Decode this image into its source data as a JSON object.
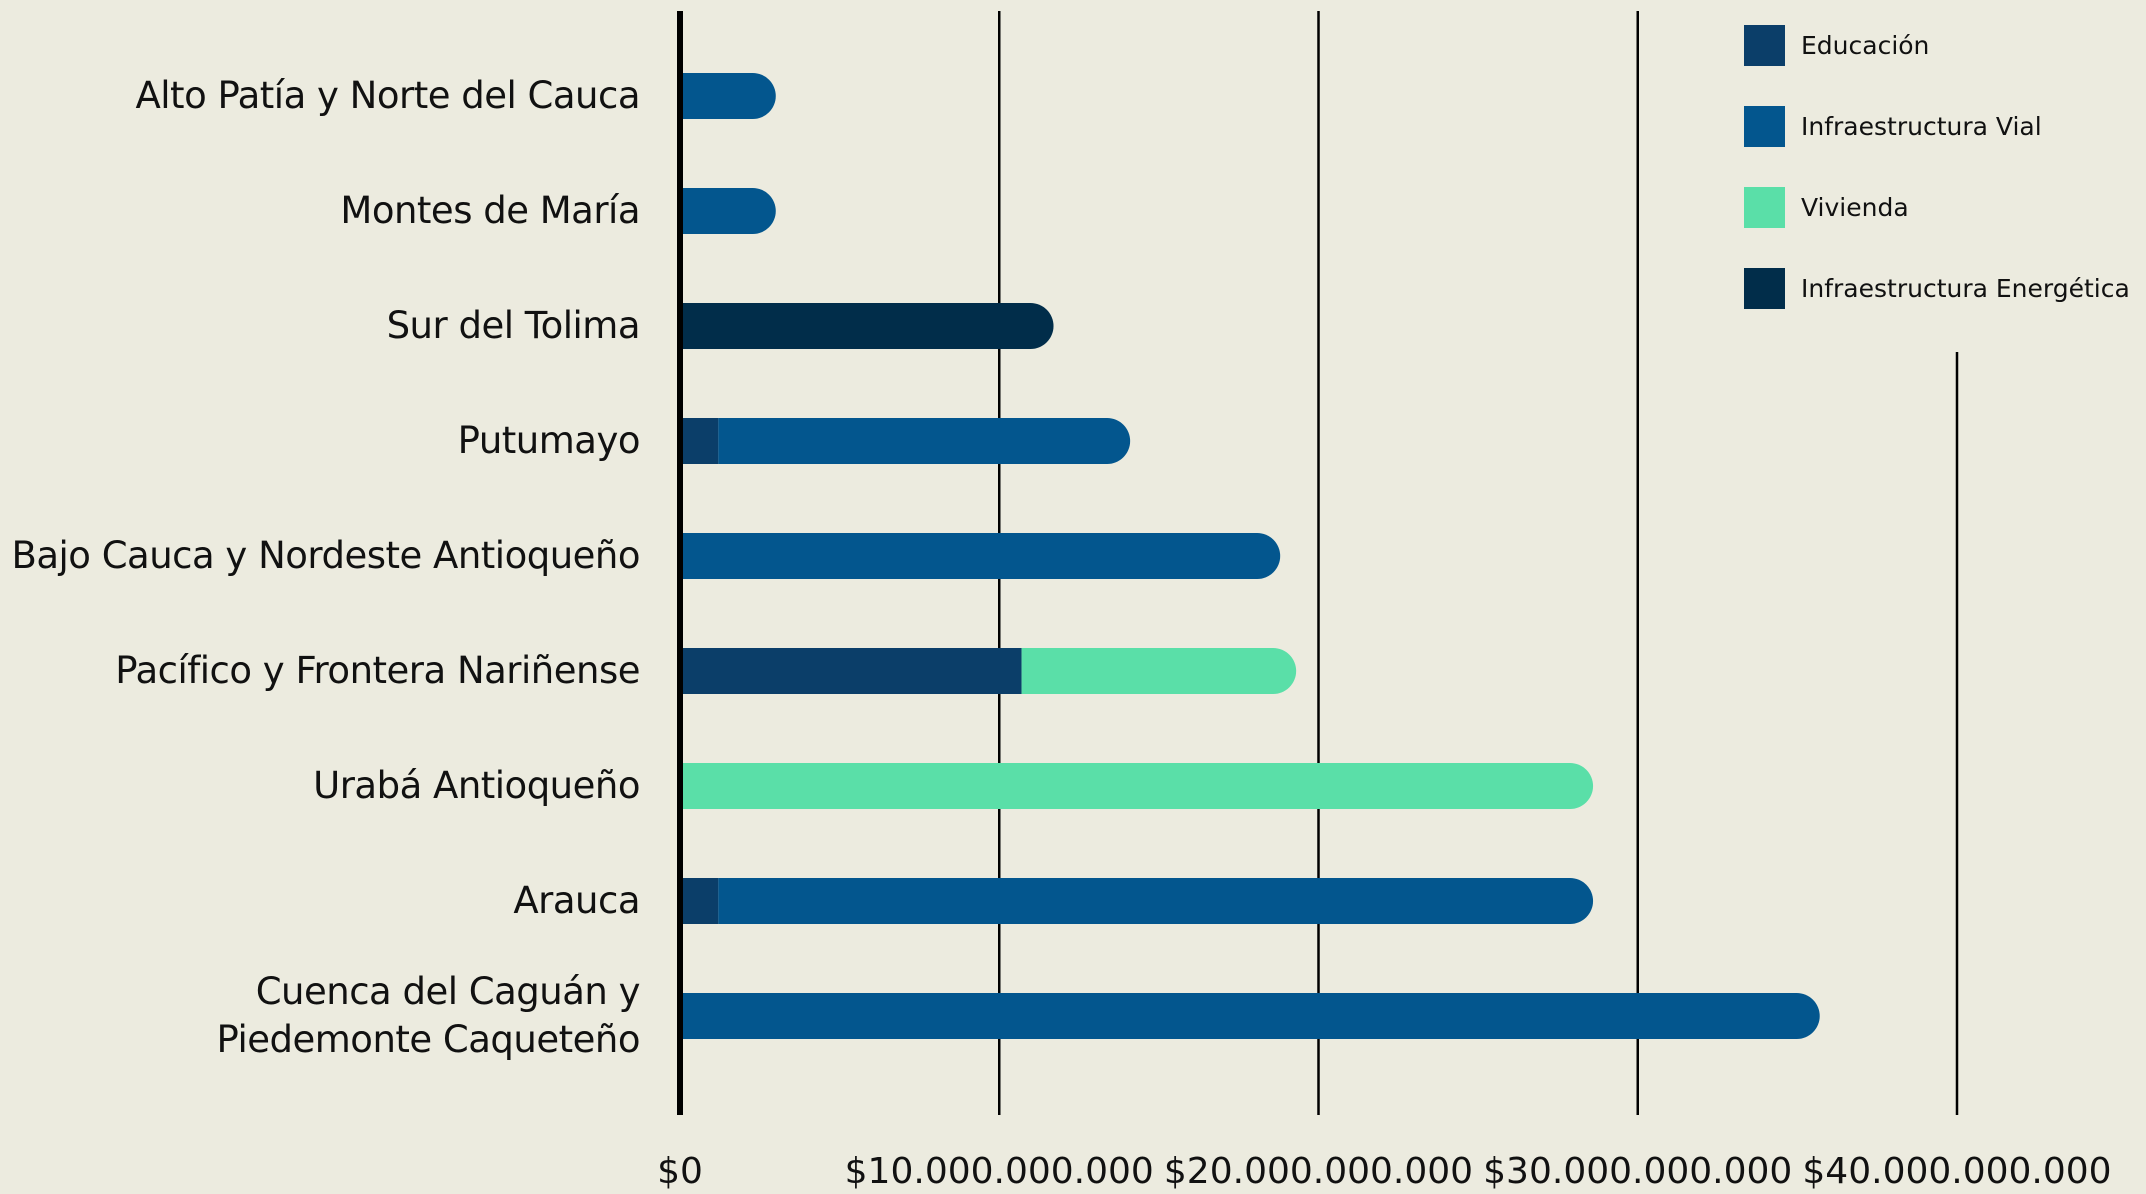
{
  "chart_data": {
    "type": "stacked_barh",
    "categories": [
      "Alto Patía y Norte del Cauca",
      "Montes de María",
      "Sur del Tolima",
      "Putumayo",
      "Bajo Cauca y Nordeste Antioqueño",
      "Pacífico  y Frontera Nariñense",
      "Urabá Antioqueño",
      "Arauca",
      "Cuenca del Caguán y\nPiedemonte Caqueteño"
    ],
    "series": [
      {
        "name": "Educación",
        "color": "#0b3e69",
        "values": [
          null,
          null,
          null,
          1200000000,
          null,
          10700000000,
          null,
          1200000000,
          null
        ]
      },
      {
        "name": "Infraestructura Vial",
        "color": "#03568e",
        "values": [
          3000000000,
          3000000000,
          null,
          12900000000,
          18800000000,
          null,
          null,
          27400000000,
          35700000000
        ]
      },
      {
        "name": "Vivienda",
        "color": "#5adfa8",
        "values": [
          null,
          null,
          null,
          null,
          null,
          8600000000,
          28600000000,
          null,
          null
        ]
      },
      {
        "name": "Infraestructura Energética",
        "color": "#012d4a",
        "values": [
          null,
          null,
          11700000000,
          null,
          null,
          null,
          null,
          null,
          null
        ]
      }
    ],
    "xlim": [
      0,
      40000000000
    ],
    "xticks": [
      {
        "value": 0,
        "label": "$0"
      },
      {
        "value": 10000000000,
        "label": "$10.000.000.000"
      },
      {
        "value": 20000000000,
        "label": "$20.000.000.000"
      },
      {
        "value": 30000000000,
        "label": "$30.000.000.000"
      },
      {
        "value": 40000000000,
        "label": "$40.000.000.000"
      }
    ],
    "grid": true,
    "legend": "top-right"
  }
}
